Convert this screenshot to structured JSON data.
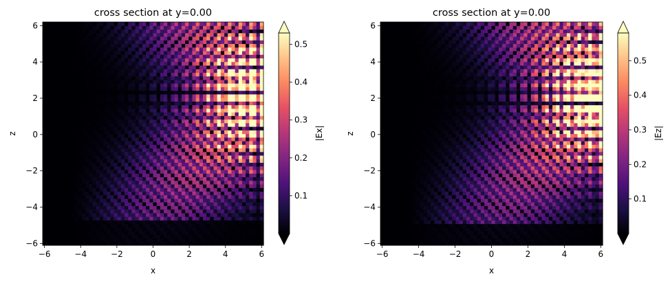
{
  "chart_data": [
    {
      "type": "heatmap",
      "title": "cross section at y=0.00",
      "xlabel": "x",
      "ylabel": "z",
      "xlim": [
        -6.1,
        6.1
      ],
      "ylim": [
        -6.1,
        6.2
      ],
      "x_ticks": [
        "−6",
        "−4",
        "−2",
        "0",
        "2",
        "4",
        "6"
      ],
      "y_ticks": [
        "−6",
        "−4",
        "−2",
        "0",
        "2",
        "4",
        "6"
      ],
      "colormap": "magma",
      "colorbar": {
        "label": "|Ex|",
        "min": 0.0,
        "max": 0.53,
        "ticks": [
          "0.1",
          "0.2",
          "0.3",
          "0.4",
          "0.5"
        ],
        "extend": "both"
      },
      "field": {
        "component": "Ex",
        "upper_beam_angle_deg": 42,
        "lower_beam_angle_deg": 42,
        "period": 0.9,
        "peak_x": 5.5,
        "peak_z": 2.2,
        "boundary_z": -4.8
      }
    },
    {
      "type": "heatmap",
      "title": "cross section at y=0.00",
      "xlabel": "x",
      "ylabel": "z",
      "xlim": [
        -6.1,
        6.1
      ],
      "ylim": [
        -6.1,
        6.2
      ],
      "x_ticks": [
        "−6",
        "−4",
        "−2",
        "0",
        "2",
        "4",
        "6"
      ],
      "y_ticks": [
        "−6",
        "−4",
        "−2",
        "0",
        "2",
        "4",
        "6"
      ],
      "colormap": "magma",
      "colorbar": {
        "label": "|Ez|",
        "min": 0.0,
        "max": 0.58,
        "ticks": [
          "0.1",
          "0.2",
          "0.3",
          "0.4",
          "0.5"
        ],
        "extend": "both"
      },
      "field": {
        "component": "Ez",
        "upper_beam_angle_deg": 42,
        "lower_beam_angle_deg": 42,
        "period": 0.9,
        "peak_x": 5.5,
        "peak_z": 2.2,
        "boundary_z": -4.9
      }
    }
  ]
}
